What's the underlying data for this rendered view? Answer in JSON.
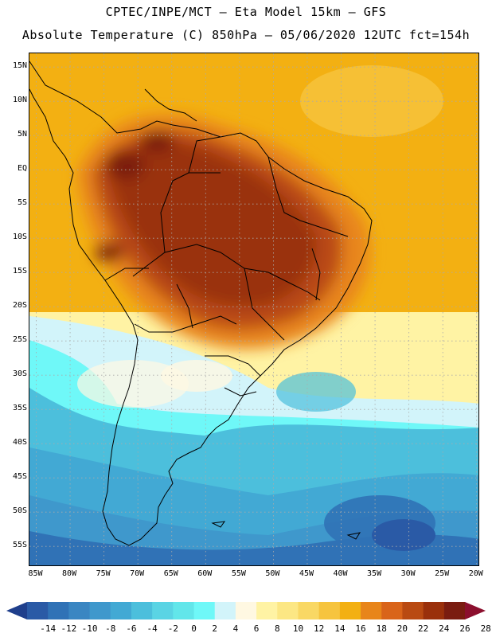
{
  "header": {
    "line1": "CPTEC/INPE/MCT –  Eta Model 15km – GFS",
    "line2": "Absolute Temperature (C) 850hPa – 05/06/2020 12UTC fct=154h"
  },
  "map": {
    "lat_labels": [
      "15N",
      "10N",
      "5N",
      "EQ",
      "5S",
      "10S",
      "15S",
      "20S",
      "25S",
      "30S",
      "35S",
      "40S",
      "45S",
      "50S",
      "55S"
    ],
    "lat_values": [
      15,
      10,
      5,
      0,
      -5,
      -10,
      -15,
      -20,
      -25,
      -30,
      -35,
      -40,
      -45,
      -50,
      -55
    ],
    "lon_labels": [
      "85W",
      "80W",
      "75W",
      "70W",
      "65W",
      "60W",
      "55W",
      "50W",
      "45W",
      "40W",
      "35W",
      "30W",
      "25W",
      "20W"
    ],
    "lon_values": [
      -85,
      -80,
      -75,
      -70,
      -65,
      -60,
      -55,
      -50,
      -45,
      -40,
      -35,
      -30,
      -25,
      -20
    ],
    "lat_range": [
      -58,
      17
    ],
    "lon_range": [
      -86,
      -19.5
    ]
  },
  "legend": {
    "values": [
      "-14",
      "-12",
      "-10",
      "-8",
      "-6",
      "-4",
      "-2",
      "0",
      "2",
      "4",
      "6",
      "8",
      "10",
      "12",
      "14",
      "16",
      "18",
      "20",
      "22",
      "24",
      "26",
      "28"
    ],
    "colors": [
      "#1f3f8c",
      "#2a5aa6",
      "#3072b6",
      "#3a86c2",
      "#3f98cc",
      "#42a9d4",
      "#4cbfdc",
      "#5ad4e4",
      "#62e6ea",
      "#6ff8f8",
      "#d2f4fa",
      "#fff8e2",
      "#fff3a4",
      "#fce784",
      "#f9d864",
      "#f6c43e",
      "#f3b012",
      "#e8851a",
      "#d9641a",
      "#b94a12",
      "#9a300b",
      "#7a1c10",
      "#8c0f2e"
    ]
  }
}
